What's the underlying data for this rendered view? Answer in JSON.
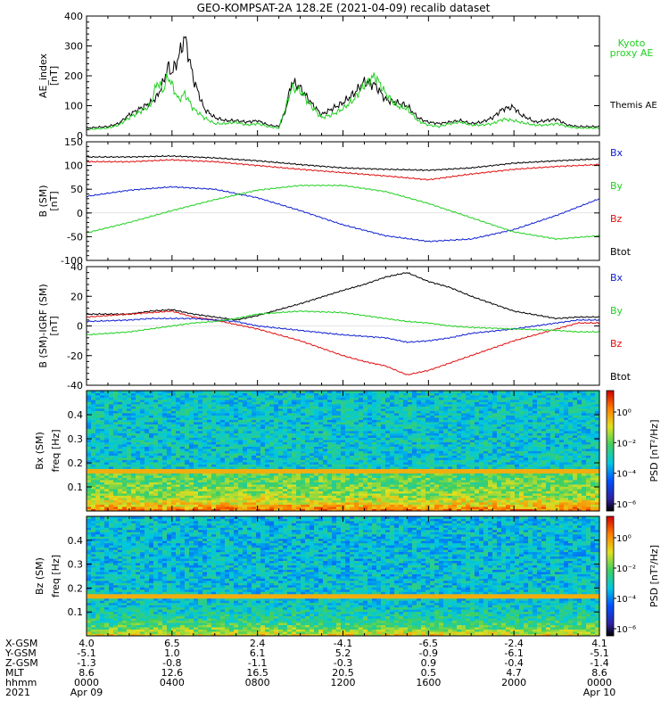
{
  "title": "GEO-KOMPSAT-2A 128.2E (2021-04-09) recalib dataset",
  "colors": {
    "black": "#000000",
    "green": "#22d022",
    "red": "#e01010",
    "blue": "#1020d0",
    "kyoto": "#22d022"
  },
  "chart_data": [
    {
      "type": "line",
      "panel": "ae",
      "ylabel": "AE_index\n[nT]",
      "ylim": [
        0,
        400
      ],
      "yticks": [
        "0",
        "100",
        "200",
        "300",
        "400"
      ],
      "xlim_hours": [
        0,
        24
      ],
      "legend": [
        {
          "name": "Kyoto\nproxy AE",
          "color": "green"
        },
        {
          "name": "Themis AE",
          "color": "black"
        }
      ],
      "series": [
        {
          "name": "Themis AE",
          "color": "black",
          "x": [
            0,
            1,
            1.5,
            2,
            2.5,
            3,
            3.3,
            3.6,
            3.8,
            4,
            4.3,
            4.6,
            5,
            5.5,
            6,
            6.5,
            7,
            7.5,
            8,
            8.5,
            9,
            9.3,
            9.6,
            10,
            10.5,
            11,
            11.5,
            12,
            12.5,
            13,
            13.5,
            14,
            14.5,
            15,
            15.5,
            15.8,
            16,
            16.5,
            17,
            17.5,
            18,
            18.5,
            19,
            19.5,
            20,
            20.3,
            20.6,
            21,
            21.5,
            22,
            22.5,
            23,
            24
          ],
          "y": [
            25,
            30,
            40,
            70,
            90,
            110,
            130,
            180,
            230,
            210,
            260,
            330,
            190,
            90,
            60,
            50,
            50,
            45,
            50,
            35,
            30,
            80,
            180,
            160,
            110,
            70,
            90,
            110,
            140,
            180,
            170,
            120,
            110,
            100,
            60,
            50,
            45,
            40,
            45,
            50,
            40,
            45,
            60,
            90,
            95,
            70,
            60,
            45,
            50,
            55,
            35,
            30,
            30
          ]
        },
        {
          "name": "Kyoto proxy AE",
          "color": "green",
          "x": [
            0,
            1,
            1.5,
            2,
            2.5,
            3,
            3.3,
            3.6,
            3.8,
            4,
            4.3,
            4.6,
            5,
            5.5,
            6,
            6.5,
            7,
            7.5,
            8,
            8.5,
            9,
            9.3,
            9.6,
            10,
            10.5,
            11,
            11.5,
            12,
            12.5,
            13,
            13.5,
            14,
            14.5,
            15,
            15.5,
            15.8,
            16,
            16.5,
            17,
            17.5,
            18,
            18.5,
            19,
            19.5,
            20,
            20.3,
            20.6,
            21,
            21.5,
            22,
            22.5,
            23,
            24
          ],
          "y": [
            20,
            25,
            35,
            60,
            80,
            100,
            180,
            150,
            200,
            170,
            120,
            140,
            90,
            60,
            40,
            40,
            45,
            35,
            40,
            30,
            25,
            90,
            160,
            150,
            100,
            60,
            70,
            90,
            120,
            170,
            200,
            140,
            100,
            90,
            50,
            40,
            35,
            30,
            40,
            45,
            35,
            35,
            40,
            55,
            50,
            45,
            40,
            35,
            35,
            40,
            30,
            25,
            25
          ]
        }
      ]
    },
    {
      "type": "line",
      "panel": "b",
      "ylabel": "B (SM)\n[nT]",
      "ylim": [
        -100,
        150
      ],
      "yticks": [
        "-100",
        "-50",
        "0",
        "50",
        "100",
        "150"
      ],
      "xlim_hours": [
        0,
        24
      ],
      "legend": [
        {
          "name": "Bx",
          "color": "blue"
        },
        {
          "name": "By",
          "color": "green"
        },
        {
          "name": "Bz",
          "color": "red"
        },
        {
          "name": "Btot",
          "color": "black"
        }
      ],
      "series": [
        {
          "name": "Btot",
          "color": "black",
          "x": [
            0,
            2,
            4,
            6,
            8,
            10,
            12,
            14,
            16,
            18,
            20,
            22,
            24
          ],
          "y": [
            118,
            118,
            120,
            116,
            110,
            102,
            95,
            92,
            90,
            95,
            105,
            110,
            114
          ]
        },
        {
          "name": "Bz",
          "color": "red",
          "x": [
            0,
            2,
            4,
            6,
            8,
            10,
            12,
            14,
            16,
            18,
            20,
            22,
            24
          ],
          "y": [
            108,
            108,
            112,
            108,
            100,
            92,
            85,
            78,
            70,
            82,
            92,
            98,
            102
          ]
        },
        {
          "name": "Bx",
          "color": "blue",
          "x": [
            0,
            2,
            4,
            6,
            8,
            10,
            12,
            14,
            16,
            18,
            20,
            22,
            24
          ],
          "y": [
            35,
            48,
            55,
            50,
            32,
            5,
            -25,
            -48,
            -60,
            -55,
            -35,
            -5,
            30
          ]
        },
        {
          "name": "By",
          "color": "green",
          "x": [
            0,
            2,
            4,
            6,
            8,
            10,
            12,
            14,
            16,
            18,
            20,
            22,
            24
          ],
          "y": [
            -42,
            -20,
            5,
            28,
            48,
            58,
            58,
            45,
            20,
            -10,
            -40,
            -55,
            -48
          ]
        }
      ]
    },
    {
      "type": "line",
      "panel": "db",
      "ylabel": "B (SM)-IGRF (SM)\n[nT]",
      "ylim": [
        -40,
        40
      ],
      "yticks": [
        "-40",
        "-20",
        "0",
        "20",
        "40"
      ],
      "xlim_hours": [
        0,
        24
      ],
      "legend": [
        {
          "name": "Bx",
          "color": "blue"
        },
        {
          "name": "By",
          "color": "green"
        },
        {
          "name": "Bz",
          "color": "red"
        },
        {
          "name": "Btot",
          "color": "black"
        }
      ],
      "series": [
        {
          "name": "Btot",
          "color": "black",
          "x": [
            0,
            2,
            3,
            4,
            5,
            6,
            7,
            8,
            10,
            12,
            13,
            14,
            15,
            16,
            17,
            18,
            20,
            22,
            23,
            24
          ],
          "y": [
            8,
            8,
            10,
            11,
            8,
            6,
            4,
            7,
            15,
            24,
            28,
            33,
            36,
            30,
            26,
            20,
            10,
            5,
            6,
            6
          ]
        },
        {
          "name": "Bz",
          "color": "red",
          "x": [
            0,
            2,
            3,
            4,
            5,
            6,
            7,
            8,
            10,
            12,
            13,
            14,
            15,
            16,
            17,
            18,
            20,
            22,
            23,
            24
          ],
          "y": [
            6,
            8,
            9,
            10,
            6,
            4,
            1,
            -2,
            -10,
            -20,
            -24,
            -27,
            -33,
            -30,
            -25,
            -20,
            -10,
            -2,
            2,
            2
          ]
        },
        {
          "name": "Bx",
          "color": "blue",
          "x": [
            0,
            2,
            3,
            4,
            5,
            6,
            7,
            8,
            10,
            12,
            13,
            14,
            15,
            16,
            17,
            18,
            20,
            22,
            23,
            24
          ],
          "y": [
            3,
            4,
            5,
            5,
            5,
            4,
            3,
            0,
            -3,
            -6,
            -7,
            -8,
            -11,
            -10,
            -8,
            -5,
            -2,
            2,
            4,
            4
          ]
        },
        {
          "name": "By",
          "color": "green",
          "x": [
            0,
            2,
            3,
            4,
            5,
            6,
            7,
            8,
            10,
            12,
            13,
            14,
            15,
            16,
            17,
            18,
            20,
            22,
            23,
            24
          ],
          "y": [
            -6,
            -4,
            -2,
            0,
            2,
            3,
            5,
            8,
            10,
            9,
            7,
            5,
            3,
            2,
            0,
            -1,
            -2,
            -3,
            -4,
            -4
          ]
        }
      ]
    },
    {
      "type": "heatmap",
      "panel": "bx_psd",
      "ylabel": "Bx (SM)\nfreq [Hz]",
      "ylim": [
        0,
        0.5
      ],
      "yticks": [
        "0.1",
        "0.2",
        "0.3",
        "0.4"
      ],
      "colorbar_label": "PSD [nT²/Hz]",
      "colorbar_ticks": [
        "10⁰",
        "10⁻²",
        "10⁻⁴",
        "10⁻⁶"
      ],
      "constant_line_hz": 0.167
    },
    {
      "type": "heatmap",
      "panel": "bz_psd",
      "ylabel": "Bz (SM)\nfreq [Hz]",
      "ylim": [
        0,
        0.5
      ],
      "yticks": [
        "0.1",
        "0.2",
        "0.3",
        "0.4"
      ],
      "colorbar_label": "PSD [nT²/Hz]",
      "colorbar_ticks": [
        "10⁰",
        "10⁻²",
        "10⁻⁴",
        "10⁻⁶"
      ],
      "constant_line_hz": 0.167
    }
  ],
  "footer": {
    "row_labels": [
      "X-GSM",
      "Y-GSM",
      "Z-GSM",
      "MLT",
      "hhmm",
      "2021"
    ],
    "columns": [
      {
        "vals": [
          "4.0",
          "-5.1",
          "-1.3",
          "8.6",
          "0000",
          "Apr 09"
        ]
      },
      {
        "vals": [
          "6.5",
          "1.0",
          "-0.8",
          "12.6",
          "0400",
          ""
        ]
      },
      {
        "vals": [
          "2.4",
          "6.1",
          "-1.1",
          "16.5",
          "0800",
          ""
        ]
      },
      {
        "vals": [
          "-4.1",
          "5.2",
          "-0.3",
          "20.5",
          "1200",
          ""
        ]
      },
      {
        "vals": [
          "-6.5",
          "-0.9",
          "0.9",
          "0.5",
          "1600",
          ""
        ]
      },
      {
        "vals": [
          "-2.4",
          "-6.1",
          "-0.4",
          "4.7",
          "2000",
          ""
        ]
      },
      {
        "vals": [
          "4.1",
          "-5.1",
          "-1.4",
          "8.6",
          "0000",
          "Apr 10"
        ]
      }
    ]
  }
}
